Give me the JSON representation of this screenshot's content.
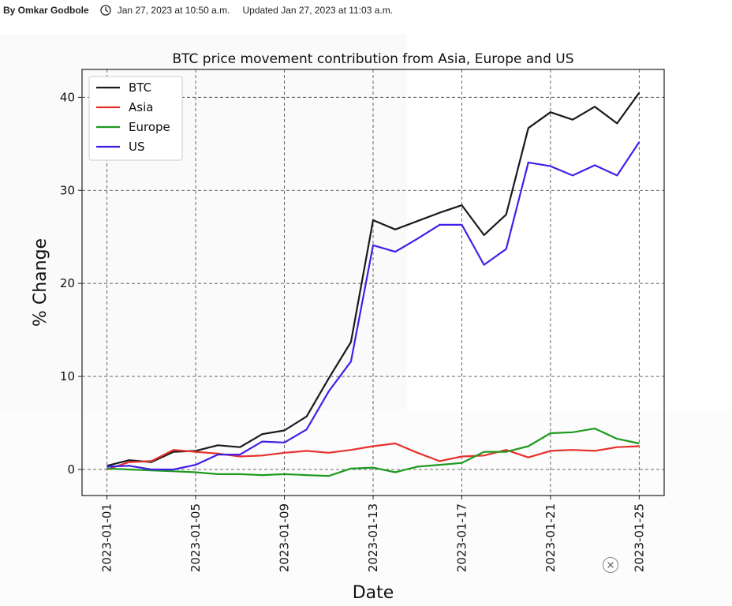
{
  "byline": {
    "author": "By Omkar Godbole",
    "published": "Jan 27, 2023 at 10:50 a.m.",
    "updated": "Updated Jan 27, 2023 at 11:03 a.m."
  },
  "chart_data": {
    "type": "line",
    "title": "BTC price movement contribution from Asia, Europe and US",
    "xlabel": "Date",
    "ylabel": "% Change",
    "grid": true,
    "legend": "top-left",
    "ylim": [
      -2.8,
      43
    ],
    "yticks": [
      0,
      10,
      20,
      30,
      40
    ],
    "xlim": [
      "2022-12-30T21:00",
      "2023-01-26T03:00"
    ],
    "xticks": [
      "2023-01-01",
      "2023-01-05",
      "2023-01-09",
      "2023-01-13",
      "2023-01-17",
      "2023-01-21",
      "2023-01-25"
    ],
    "x": [
      "2023-01-01",
      "2023-01-02",
      "2023-01-03",
      "2023-01-04",
      "2023-01-05",
      "2023-01-06",
      "2023-01-07",
      "2023-01-08",
      "2023-01-09",
      "2023-01-10",
      "2023-01-11",
      "2023-01-12",
      "2023-01-13",
      "2023-01-14",
      "2023-01-15",
      "2023-01-16",
      "2023-01-17",
      "2023-01-18",
      "2023-01-19",
      "2023-01-20",
      "2023-01-21",
      "2023-01-22",
      "2023-01-23",
      "2023-01-24",
      "2023-01-25"
    ],
    "series": [
      {
        "name": "BTC",
        "color": "#1a1a1a",
        "values": [
          0.4,
          1.0,
          0.8,
          1.9,
          2.0,
          2.6,
          2.4,
          3.8,
          4.2,
          5.7,
          9.8,
          13.7,
          26.8,
          25.8,
          26.7,
          27.6,
          28.4,
          25.2,
          27.4,
          36.7,
          38.4,
          37.6,
          39.0,
          37.2,
          40.5
        ]
      },
      {
        "name": "Asia",
        "color": "#e8302c",
        "values": [
          0.0,
          0.8,
          0.9,
          2.1,
          1.9,
          1.7,
          1.4,
          1.5,
          1.8,
          2.0,
          1.8,
          2.1,
          2.5,
          2.8,
          1.8,
          0.9,
          1.4,
          1.5,
          2.1,
          1.3,
          2.0,
          2.1,
          2.0,
          2.4,
          2.5
        ]
      },
      {
        "name": "Europe",
        "color": "#1e9a1e",
        "values": [
          0.1,
          0.0,
          -0.1,
          -0.2,
          -0.3,
          -0.5,
          -0.5,
          -0.6,
          -0.5,
          -0.6,
          -0.7,
          0.1,
          0.2,
          -0.3,
          0.3,
          0.5,
          0.7,
          1.9,
          1.9,
          2.5,
          3.9,
          4.0,
          4.4,
          3.3,
          2.8
        ]
      },
      {
        "name": "US",
        "color": "#4020e8",
        "values": [
          0.3,
          0.4,
          0.0,
          0.0,
          0.5,
          1.6,
          1.6,
          3.0,
          2.9,
          4.3,
          8.4,
          11.6,
          24.1,
          23.4,
          24.8,
          26.3,
          26.3,
          22.0,
          23.7,
          33.0,
          32.6,
          31.6,
          32.7,
          31.6,
          35.2
        ]
      }
    ]
  },
  "controls": {
    "close_icon": "close-icon"
  }
}
